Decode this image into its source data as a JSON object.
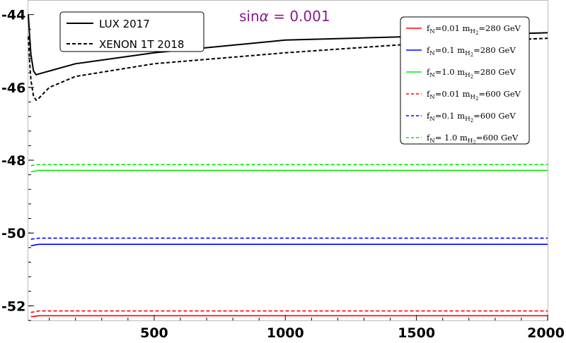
{
  "chart_data": {
    "type": "line",
    "title": "",
    "xlabel": "",
    "ylabel": "",
    "xlim": [
      20,
      2000
    ],
    "ylim": [
      -52.4,
      -43.6
    ],
    "x_ticks": [
      500,
      1000,
      1500,
      2000
    ],
    "x_tick_labels": [
      "500",
      "1000",
      "1500",
      "2000"
    ],
    "y_ticks": [
      -44,
      -46,
      -48,
      -50,
      -52
    ],
    "y_tick_labels": [
      "-44",
      "-46",
      "-48",
      "-50",
      "-52"
    ],
    "annotation": {
      "prefix": "sin",
      "symbol": "α",
      "suffix": " = 0.001",
      "color": "#8b1a8b"
    },
    "legends": [
      {
        "position": "top-left",
        "entries": [
          {
            "label": "LUX 2017",
            "series": "lux"
          },
          {
            "label": "XENON 1T 2018",
            "series": "xenon"
          }
        ]
      },
      {
        "position": "top-right",
        "entries": [
          {
            "fN": "f",
            "fSub": "N",
            "fVal": "=0.01",
            "m": "m",
            "mSub": "H",
            "mSub2": "2",
            "mVal": "=280 GeV",
            "series": "r280"
          },
          {
            "fN": "f",
            "fSub": "N",
            "fVal": "=0.1",
            "m": "m",
            "mSub": "H",
            "mSub2": "2",
            "mVal": "=280 GeV",
            "series": "b280"
          },
          {
            "fN": "f",
            "fSub": "N",
            "fVal": "=1.0",
            "m": "m",
            "mSub": "H",
            "mSub2": "2",
            "mVal": "=280 GeV",
            "series": "g280"
          },
          {
            "fN": "f",
            "fSub": "N",
            "fVal": "=0.01",
            "m": "m",
            "mSub": "H",
            "mSub2": "2",
            "mVal": "=600 GeV",
            "series": "r600"
          },
          {
            "fN": "f",
            "fSub": "N",
            "fVal": "=0.1",
            "m": "m",
            "mSub": "H",
            "mSub2": "2",
            "mVal": "=600 GeV",
            "series": "b600"
          },
          {
            "fN": "f",
            "fSub": "N",
            "fVal": "= 1.0",
            "m": "m",
            "mSub": "H",
            "mSub2": "2",
            "mVal": "=600 GeV",
            "series": "g600"
          }
        ]
      }
    ],
    "series": [
      {
        "id": "lux",
        "color": "#000000",
        "dashed": false,
        "x": [
          20,
          25,
          30,
          40,
          50,
          75,
          100,
          200,
          500,
          1000,
          1500,
          2000
        ],
        "y": [
          -44.0,
          -44.6,
          -45.1,
          -45.55,
          -45.65,
          -45.6,
          -45.55,
          -45.35,
          -45.05,
          -44.7,
          -44.6,
          -44.5
        ]
      },
      {
        "id": "xenon",
        "color": "#000000",
        "dashed": false,
        "dash": true,
        "x": [
          20,
          25,
          30,
          40,
          50,
          60,
          80,
          100,
          150,
          200,
          500,
          1000,
          1500,
          2000
        ],
        "y": [
          -44.6,
          -45.3,
          -45.8,
          -46.25,
          -46.35,
          -46.3,
          -46.15,
          -46.0,
          -45.85,
          -45.7,
          -45.35,
          -45.05,
          -44.8,
          -44.65
        ]
      },
      {
        "id": "r280",
        "color": "#ff0000",
        "dashed": false,
        "x": [
          30,
          60,
          2000
        ],
        "y": [
          -52.3,
          -52.27,
          -52.27
        ]
      },
      {
        "id": "b280",
        "color": "#0000ff",
        "dashed": false,
        "x": [
          30,
          60,
          2000
        ],
        "y": [
          -50.35,
          -50.31,
          -50.31
        ]
      },
      {
        "id": "g280",
        "color": "#00ee00",
        "dashed": false,
        "x": [
          30,
          60,
          2000
        ],
        "y": [
          -48.32,
          -48.28,
          -48.28
        ]
      },
      {
        "id": "r600",
        "color": "#ff0000",
        "dashed": true,
        "x": [
          30,
          60,
          2000
        ],
        "y": [
          -52.18,
          -52.14,
          -52.14
        ]
      },
      {
        "id": "b600",
        "color": "#0000ff",
        "dashed": true,
        "x": [
          30,
          60,
          2000
        ],
        "y": [
          -50.17,
          -50.14,
          -50.14
        ]
      },
      {
        "id": "g600",
        "color": "#00ee00",
        "dashed": true,
        "x": [
          30,
          60,
          2000
        ],
        "y": [
          -48.15,
          -48.12,
          -48.12
        ]
      }
    ]
  }
}
